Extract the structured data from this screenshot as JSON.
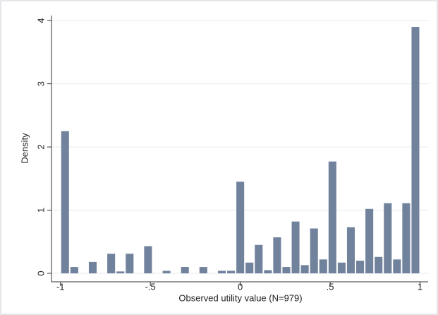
{
  "chart_data": {
    "type": "histogram",
    "xlabel": "Observed utility value (N=979)",
    "ylabel": "Density",
    "bins": [
      -1,
      -0.9487,
      -0.8974,
      -0.8462,
      -0.7949,
      -0.7436,
      -0.6923,
      -0.641,
      -0.5897,
      -0.5385,
      -0.4872,
      -0.4359,
      -0.3846,
      -0.3333,
      -0.2821,
      -0.2308,
      -0.1795,
      -0.1282,
      -0.0769,
      -0.0256,
      0.0256,
      0.0769,
      0.1282,
      0.1795,
      0.2308,
      0.2821,
      0.3333,
      0.3846,
      0.4359,
      0.4872,
      0.5385,
      0.5897,
      0.641,
      0.6923,
      0.7436,
      0.7949,
      0.8462,
      0.8974,
      0.9487,
      1
    ],
    "values": [
      2.25,
      0.1,
      0,
      0.18,
      0,
      0.31,
      0.03,
      0.31,
      0,
      0.43,
      0,
      0.04,
      0,
      0.1,
      0,
      0.1,
      0,
      0.04,
      0.04,
      1.45,
      0.17,
      0.45,
      0.05,
      0.57,
      0.1,
      0.82,
      0.13,
      0.71,
      0.22,
      1.77,
      0.17,
      0.73,
      0.2,
      1.02,
      0.26,
      1.11,
      0.22,
      1.11,
      3.9
    ],
    "color": "#71829c",
    "xlim": [
      -1.05,
      1.045
    ],
    "ylim": [
      -0.134,
      4.08
    ],
    "xticks": [
      -1,
      {
        "value": -0.5,
        "label": "-.5"
      },
      0,
      {
        "value": 0.5,
        "label": ".5"
      },
      1
    ],
    "yticks": [
      0,
      1,
      2,
      3,
      4
    ],
    "grid": true
  }
}
